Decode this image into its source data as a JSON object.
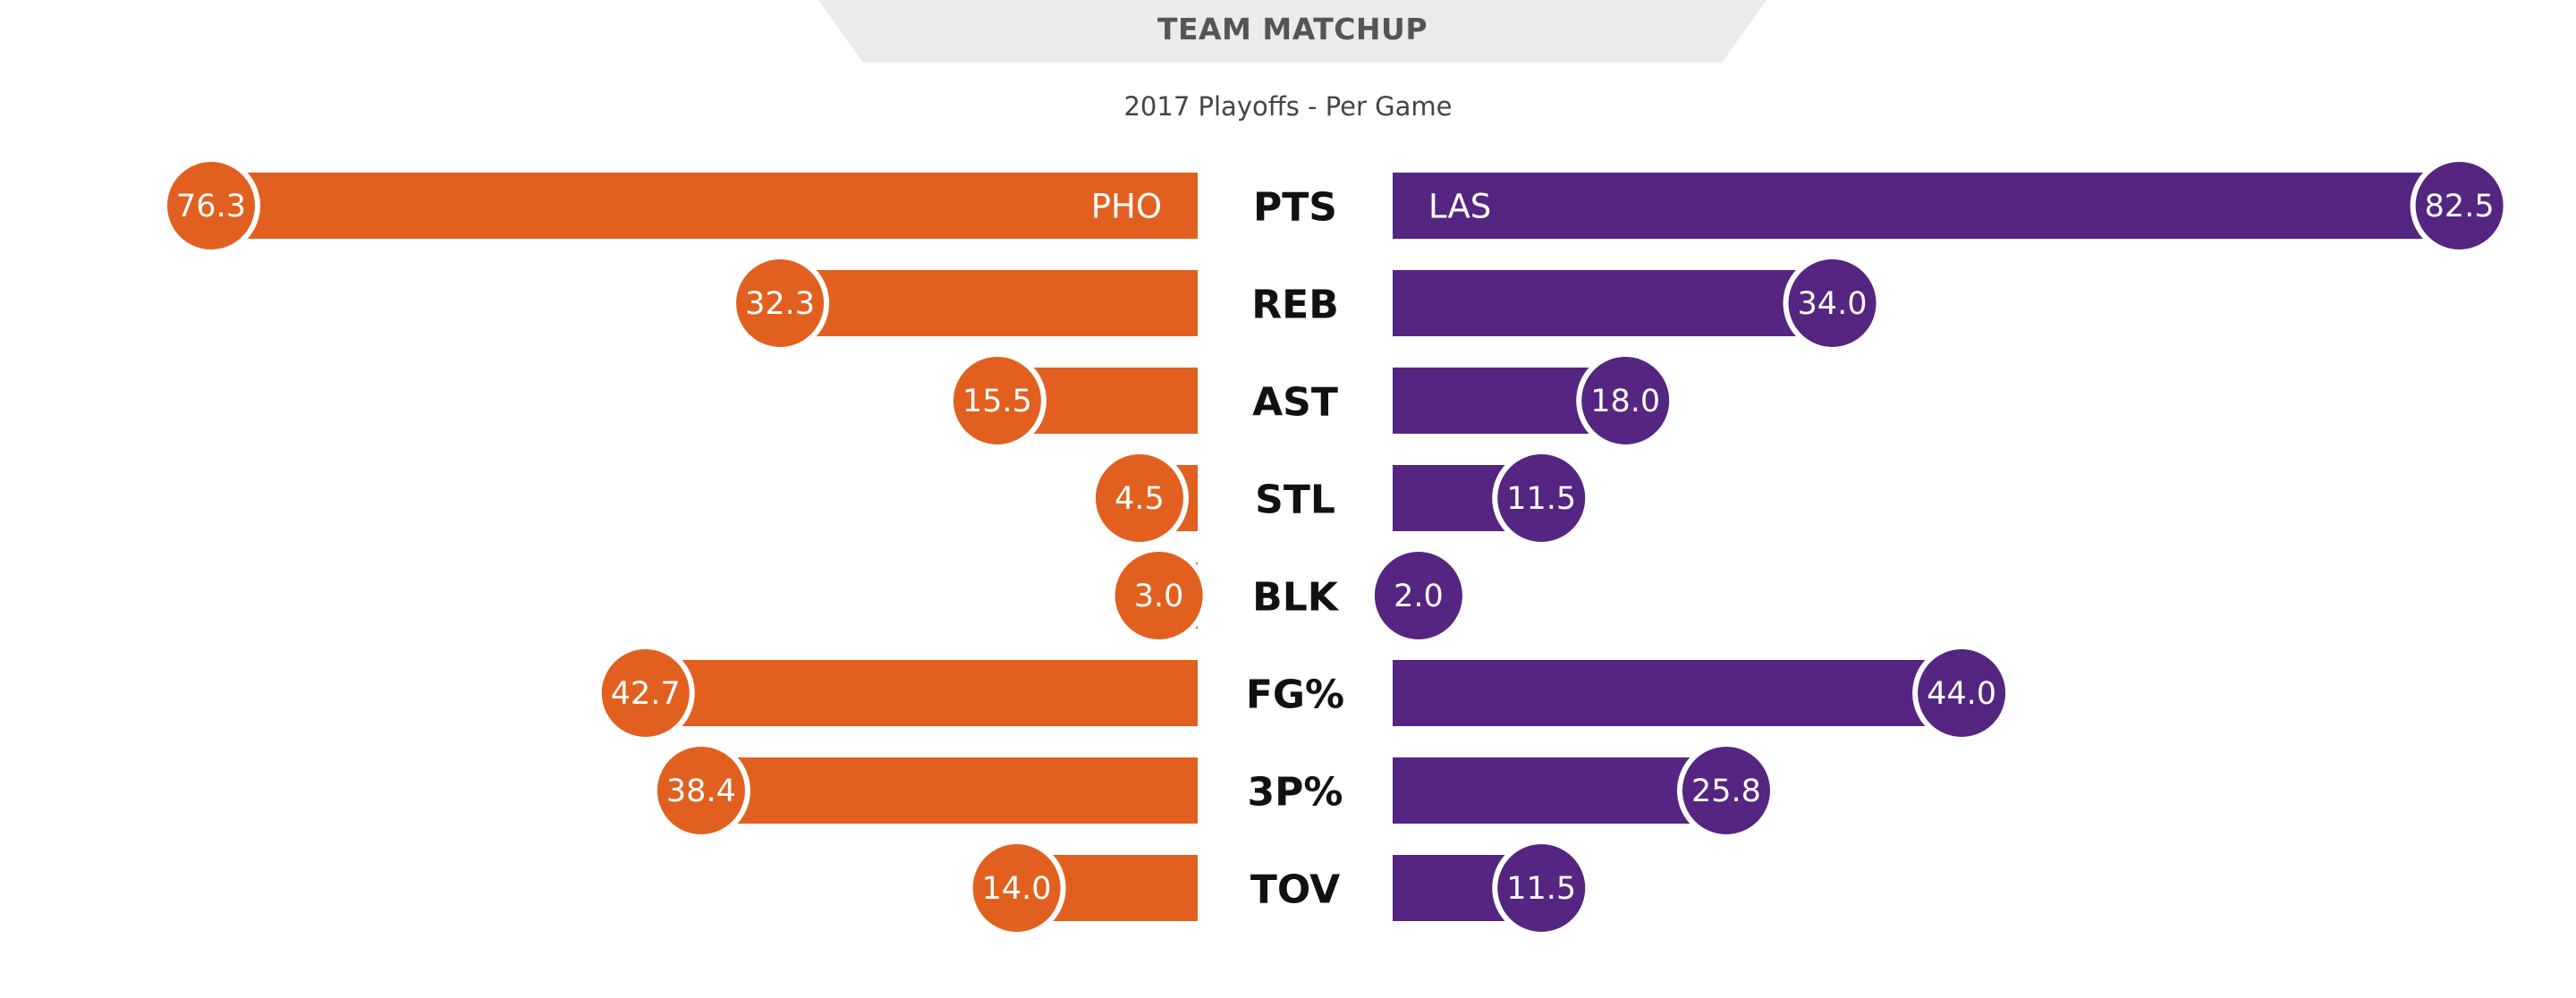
{
  "header": {
    "title": "TEAM MATCHUP",
    "subtitle": "2017 Playoffs - Per Game"
  },
  "colors": {
    "left_team": "#E2601F",
    "right_team": "#542581",
    "header_bg": "#EBEBEB"
  },
  "chart_data": {
    "type": "bar",
    "orientation": "horizontal-diverging",
    "title": "TEAM MATCHUP",
    "subtitle": "2017 Playoffs - Per Game",
    "categories": [
      "PTS",
      "REB",
      "AST",
      "STL",
      "BLK",
      "FG%",
      "3P%",
      "TOV"
    ],
    "series": [
      {
        "name": "PHO",
        "side": "left",
        "values": [
          76.3,
          32.3,
          15.5,
          4.5,
          3.0,
          42.7,
          38.4,
          14.0
        ],
        "labels": [
          "76.3",
          "32.3",
          "15.5",
          "4.5",
          "3.0",
          "42.7",
          "38.4",
          "14.0"
        ]
      },
      {
        "name": "LAS",
        "side": "right",
        "values": [
          82.5,
          34.0,
          18.0,
          11.5,
          2.0,
          44.0,
          25.8,
          11.5
        ],
        "labels": [
          "82.5",
          "34.0",
          "18.0",
          "11.5",
          "2.0",
          "44.0",
          "25.8",
          "11.5"
        ]
      }
    ],
    "legend": "inline-in-first-bar",
    "grid": false
  }
}
